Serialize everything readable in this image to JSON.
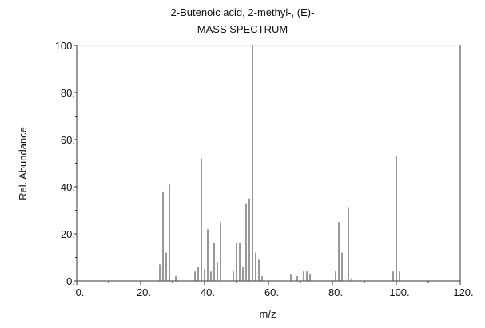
{
  "chart_data": {
    "type": "bar",
    "title": "2-Butenoic acid, 2-methyl-, (E)-",
    "subtitle": "MASS SPECTRUM",
    "xlabel": "m/z",
    "ylabel": "Rel. Abundance",
    "xlim": [
      0,
      120
    ],
    "ylim": [
      0,
      100
    ],
    "xticks": [
      "0.",
      "20.",
      "40.",
      "60.",
      "80.",
      "100.",
      "120."
    ],
    "yticks": [
      "0.",
      "20.",
      "40.",
      "60.",
      "80.",
      "100."
    ],
    "grid": false,
    "bar_color": "#555555",
    "x": [
      26,
      27,
      28,
      29,
      31,
      37,
      38,
      39,
      40,
      41,
      42,
      43,
      44,
      45,
      49,
      50,
      51,
      52,
      53,
      54,
      55,
      56,
      57,
      58,
      67,
      69,
      71,
      72,
      73,
      81,
      82,
      83,
      85,
      86,
      99,
      100,
      101
    ],
    "values": [
      7,
      38,
      12,
      41,
      2,
      4,
      6,
      52,
      5,
      22,
      4,
      16,
      8,
      25,
      4,
      16,
      16,
      6,
      33,
      35,
      100,
      12,
      9,
      2,
      3,
      2,
      4,
      4,
      3,
      4,
      25,
      12,
      31,
      1,
      4,
      53,
      4
    ]
  }
}
